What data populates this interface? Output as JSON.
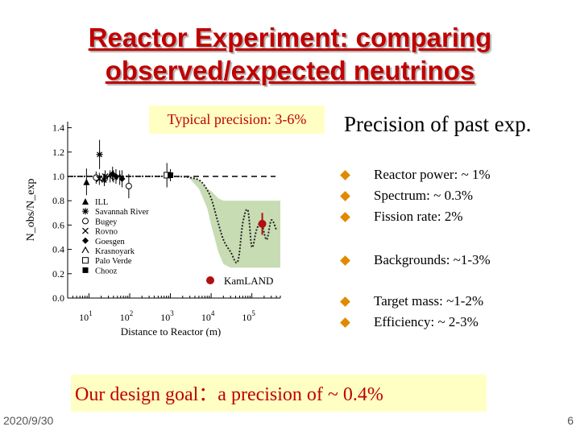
{
  "slide": {
    "title_line1": "Reactor Experiment: comparing",
    "title_line2": "observed/expected neutrinos",
    "precision_note": "Typical precision: 3-6%",
    "heading": "Precision of past exp.",
    "bullets": [
      "Reactor power: ~ 1%",
      "Spectrum: ~ 0.3%",
      "Fission rate: 2%",
      "Backgrounds: ~1-3%",
      "Target mass: ~1-2%",
      "Efficiency: ~ 2-3%"
    ],
    "goal": "Our design goal：a precision of ~ 0.4%",
    "date": "2020/9/30",
    "page_number": "6"
  },
  "colors": {
    "title": "#c00000",
    "highlight_bg": "#ffffc4",
    "bullet": "#e08a00",
    "band": "#c8dcb4",
    "kamland": "#b01010"
  },
  "chart_data": {
    "type": "scatter",
    "title": "",
    "xlabel": "Distance to Reactor (m)",
    "ylabel": "N_obs/N_exp",
    "x_scale": "log",
    "xlim": [
      3,
      500000
    ],
    "ylim": [
      0,
      1.45
    ],
    "x_ticks": [
      {
        "value": 10,
        "base": "10",
        "exp": "1"
      },
      {
        "value": 100,
        "base": "10",
        "exp": "2"
      },
      {
        "value": 1000,
        "base": "10",
        "exp": "3"
      },
      {
        "value": 10000,
        "base": "10",
        "exp": "4"
      },
      {
        "value": 100000,
        "base": "10",
        "exp": "5"
      }
    ],
    "y_ticks": [
      "0.0",
      "0.2",
      "0.4",
      "0.6",
      "0.8",
      "1.0",
      "1.2",
      "1.4"
    ],
    "y_tick_values": [
      0,
      0.2,
      0.4,
      0.6,
      0.8,
      1.0,
      1.2,
      1.4
    ],
    "reference_line": 1.0,
    "series": [
      {
        "name": "ILL",
        "marker": "triangle",
        "points": [
          {
            "x": 8.7,
            "y": 0.955,
            "err": 0.11
          }
        ]
      },
      {
        "name": "Savannah River",
        "marker": "star",
        "points": [
          {
            "x": 18.2,
            "y": 1.18,
            "err": 0.12
          },
          {
            "x": 23.8,
            "y": 0.97,
            "err": 0.05
          }
        ]
      },
      {
        "name": "Bugey",
        "marker": "circle",
        "points": [
          {
            "x": 15,
            "y": 0.99,
            "err": 0.05
          },
          {
            "x": 40,
            "y": 1.0,
            "err": 0.05
          },
          {
            "x": 95,
            "y": 0.92,
            "err": 0.1
          }
        ]
      },
      {
        "name": "Rovno",
        "marker": "x",
        "points": [
          {
            "x": 18,
            "y": 0.98,
            "err": 0.05
          },
          {
            "x": 25,
            "y": 1.0,
            "err": 0.05
          }
        ]
      },
      {
        "name": "Goesgen",
        "marker": "diamond",
        "points": [
          {
            "x": 38,
            "y": 1.02,
            "err": 0.06
          },
          {
            "x": 46,
            "y": 1.0,
            "err": 0.06
          },
          {
            "x": 65,
            "y": 0.98,
            "err": 0.07
          }
        ]
      },
      {
        "name": "Krasnoyark",
        "marker": "caret",
        "points": [
          {
            "x": 33,
            "y": 1.0,
            "err": 0.05
          },
          {
            "x": 57,
            "y": 0.99,
            "err": 0.06
          }
        ]
      },
      {
        "name": "Palo Verde",
        "marker": "square-open",
        "points": [
          {
            "x": 820,
            "y": 1.01,
            "err": 0.1
          }
        ]
      },
      {
        "name": "Chooz",
        "marker": "square",
        "points": [
          {
            "x": 1000,
            "y": 1.01,
            "err": 0.05
          }
        ]
      },
      {
        "name": "KamLAND",
        "marker": "kamland",
        "points": [
          {
            "x": 180000,
            "y": 0.61,
            "err": 0.09
          }
        ]
      }
    ],
    "oscillation_curve": {
      "x": [
        3,
        1000,
        3000,
        5000,
        7000,
        10000,
        14000,
        20000,
        30000,
        45000,
        60000,
        80000,
        100000,
        130000,
        170000,
        230000,
        300000,
        400000
      ],
      "y": [
        1.0,
        1.0,
        0.99,
        0.97,
        0.92,
        0.82,
        0.65,
        0.48,
        0.38,
        0.3,
        0.62,
        0.72,
        0.42,
        0.56,
        0.62,
        0.48,
        0.64,
        0.56
      ]
    },
    "band": {
      "x": [
        3000,
        5000,
        8000,
        10000,
        15000,
        20000,
        30000,
        500000
      ],
      "upper": [
        1.0,
        0.97,
        0.9,
        0.88,
        0.82,
        0.8,
        0.8,
        0.8
      ],
      "lower": [
        0.98,
        0.9,
        0.74,
        0.6,
        0.38,
        0.28,
        0.25,
        0.25
      ]
    },
    "kamland_label": "KamLAND"
  }
}
